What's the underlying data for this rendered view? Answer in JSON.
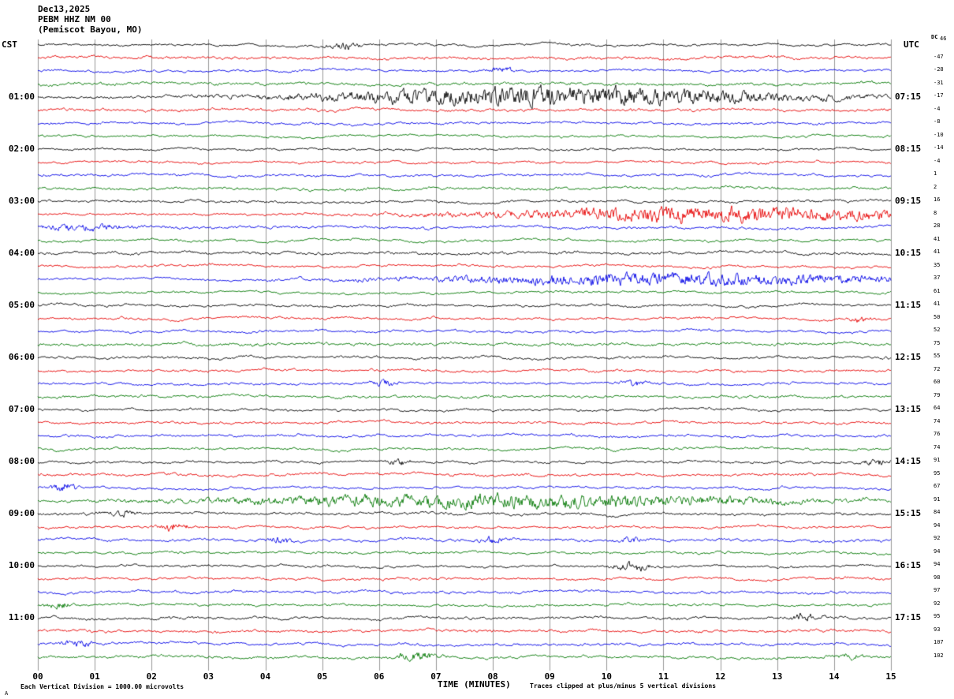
{
  "header": {
    "date": "Dec13,2025",
    "station": "PEBM HHZ NM 00",
    "location": "(Pemiscot Bayou, MO)",
    "left_tz": "CST",
    "right_tz": "UTC",
    "dc_label": "DC"
  },
  "footer": {
    "corner_mark": "A",
    "scale_note": "Each Vertical Division = 1000.00 microvolts",
    "x_axis_title": "TIME (MINUTES)",
    "clip_note": "Traces clipped at plus/minus 5 vertical divisions"
  },
  "chart_data": {
    "type": "line",
    "subtype": "helicorder-seismogram",
    "title": "PEBM HHZ NM 00 (Pemiscot Bayou, MO) Dec13,2025",
    "xlabel": "TIME (MINUTES)",
    "x_range_minutes": [
      0,
      15
    ],
    "x_tick_labels": [
      "00",
      "01",
      "02",
      "03",
      "04",
      "05",
      "06",
      "07",
      "08",
      "09",
      "10",
      "11",
      "12",
      "13",
      "14",
      "15"
    ],
    "rows": 48,
    "row_duration_minutes": 15,
    "start_time_cst": "00:00",
    "trace_color_cycle": [
      "#000000",
      "#e60000",
      "#0000e6",
      "#007700"
    ],
    "grid_color": "#999999",
    "hour_labels": [
      {
        "row": 4,
        "cst": "01:00",
        "utc": "07:15"
      },
      {
        "row": 8,
        "cst": "02:00",
        "utc": "08:15"
      },
      {
        "row": 12,
        "cst": "03:00",
        "utc": "09:15"
      },
      {
        "row": 16,
        "cst": "04:00",
        "utc": "10:15"
      },
      {
        "row": 20,
        "cst": "05:00",
        "utc": "11:15"
      },
      {
        "row": 24,
        "cst": "06:00",
        "utc": "12:15"
      },
      {
        "row": 28,
        "cst": "07:00",
        "utc": "13:15"
      },
      {
        "row": 32,
        "cst": "08:00",
        "utc": "14:15"
      },
      {
        "row": 36,
        "cst": "09:00",
        "utc": "15:15"
      },
      {
        "row": 40,
        "cst": "10:00",
        "utc": "16:15"
      },
      {
        "row": 44,
        "cst": "11:00",
        "utc": "17:15"
      }
    ],
    "dc_values": [
      46,
      -47,
      -28,
      -31,
      -17,
      -4,
      -8,
      -10,
      -14,
      -4,
      1,
      2,
      16,
      8,
      28,
      41,
      41,
      35,
      37,
      61,
      41,
      50,
      52,
      75,
      55,
      72,
      60,
      79,
      64,
      74,
      76,
      74,
      91,
      95,
      67,
      91,
      84,
      94,
      92,
      94,
      94,
      98,
      97,
      92,
      95,
      93,
      107,
      102
    ],
    "events": [
      {
        "row": 0,
        "start": 5.2,
        "end": 5.6,
        "amp": 4
      },
      {
        "row": 2,
        "start": 8.0,
        "end": 8.35,
        "amp": 3.5
      },
      {
        "row": 4,
        "start": 5.8,
        "end": 12.5,
        "amp": 11
      },
      {
        "row": 13,
        "start": 8.8,
        "end": 15.2,
        "amp": 9
      },
      {
        "row": 14,
        "start": 0.0,
        "end": 1.5,
        "amp": 3
      },
      {
        "row": 18,
        "start": 7.6,
        "end": 14.8,
        "amp": 7
      },
      {
        "row": 21,
        "start": 14.3,
        "end": 14.6,
        "amp": 3
      },
      {
        "row": 26,
        "start": 5.9,
        "end": 6.3,
        "amp": 3
      },
      {
        "row": 26,
        "start": 10.3,
        "end": 10.7,
        "amp": 3
      },
      {
        "row": 32,
        "start": 6.2,
        "end": 6.5,
        "amp": 3.5
      },
      {
        "row": 32,
        "start": 14.55,
        "end": 14.9,
        "amp": 4
      },
      {
        "row": 34,
        "start": 0.3,
        "end": 0.65,
        "amp": 5
      },
      {
        "row": 35,
        "start": 4.3,
        "end": 12.2,
        "amp": 8
      },
      {
        "row": 36,
        "start": 1.3,
        "end": 1.7,
        "amp": 3
      },
      {
        "row": 37,
        "start": 2.2,
        "end": 2.6,
        "amp": 5
      },
      {
        "row": 38,
        "start": 4.1,
        "end": 4.45,
        "amp": 3
      },
      {
        "row": 38,
        "start": 7.8,
        "end": 8.15,
        "amp": 4
      },
      {
        "row": 38,
        "start": 10.3,
        "end": 10.6,
        "amp": 3
      },
      {
        "row": 40,
        "start": 10.2,
        "end": 10.7,
        "amp": 5
      },
      {
        "row": 43,
        "start": 0.2,
        "end": 0.55,
        "amp": 4
      },
      {
        "row": 44,
        "start": 13.3,
        "end": 13.7,
        "amp": 4
      },
      {
        "row": 46,
        "start": 0.5,
        "end": 0.9,
        "amp": 4
      },
      {
        "row": 47,
        "start": 6.4,
        "end": 6.9,
        "amp": 5
      },
      {
        "row": 47,
        "start": 14.1,
        "end": 14.45,
        "amp": 3
      }
    ],
    "clip_divisions": 5,
    "microvolts_per_division": "1000.00"
  }
}
